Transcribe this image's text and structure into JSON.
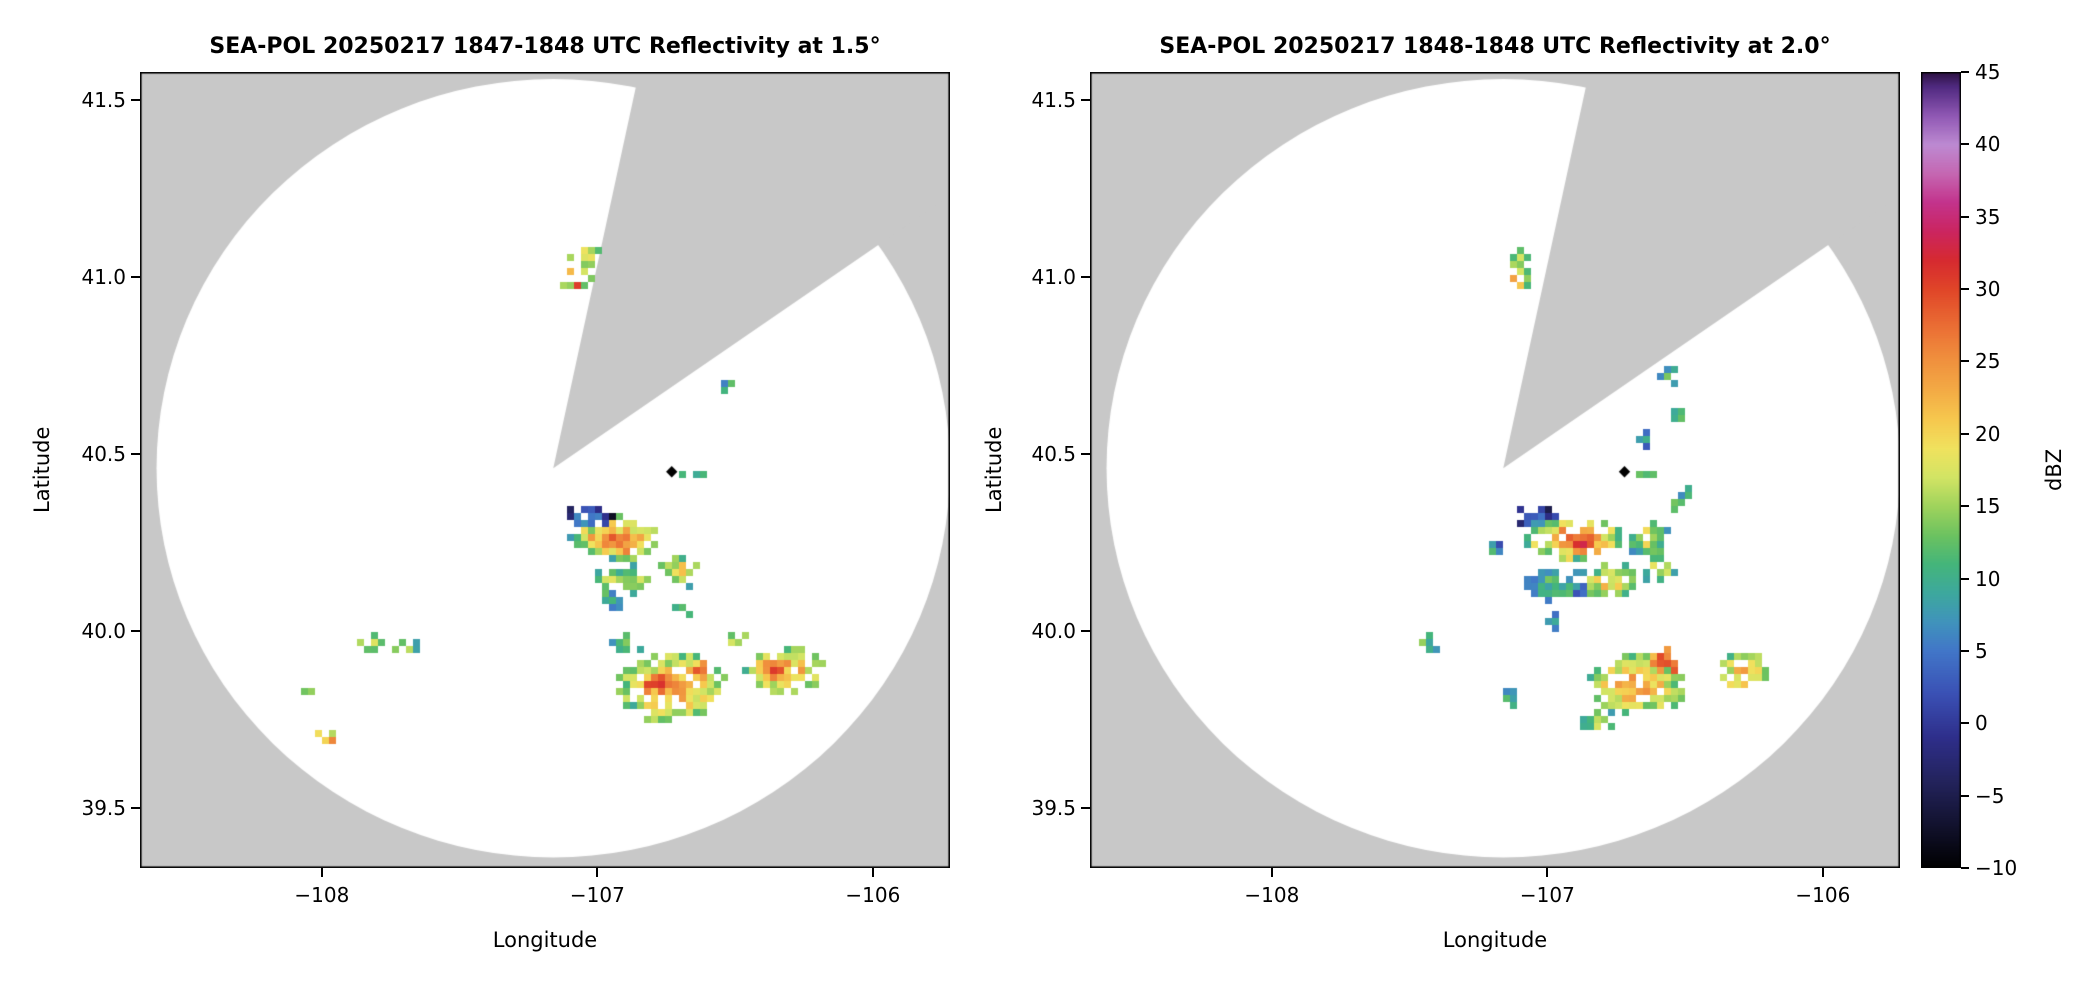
{
  "figure": {
    "background": "#ffffff",
    "outside_color": "#c8c8c8",
    "scan_color": "#ffffff"
  },
  "colorbar": {
    "label": "dBZ",
    "vmin": -10,
    "vmax": 45,
    "ticks": [
      {
        "value": 45,
        "label": "45"
      },
      {
        "value": 40,
        "label": "40"
      },
      {
        "value": 35,
        "label": "35"
      },
      {
        "value": 30,
        "label": "30"
      },
      {
        "value": 25,
        "label": "25"
      },
      {
        "value": 20,
        "label": "20"
      },
      {
        "value": 15,
        "label": "15"
      },
      {
        "value": 10,
        "label": "10"
      },
      {
        "value": 5,
        "label": "5"
      },
      {
        "value": 0,
        "label": "0"
      },
      {
        "value": -5,
        "label": "−5"
      },
      {
        "value": -10,
        "label": "−10"
      }
    ],
    "colormap": [
      [
        -10,
        "#000000"
      ],
      [
        -7,
        "#12122e"
      ],
      [
        -4,
        "#23235c"
      ],
      [
        -1,
        "#2e2e8a"
      ],
      [
        2,
        "#3a50b4"
      ],
      [
        5,
        "#4176c8"
      ],
      [
        7,
        "#4093bc"
      ],
      [
        9,
        "#3da89e"
      ],
      [
        11,
        "#44b57b"
      ],
      [
        13,
        "#6cc260"
      ],
      [
        15,
        "#9fd35c"
      ],
      [
        17,
        "#d2e464"
      ],
      [
        19,
        "#f0e25e"
      ],
      [
        21,
        "#f6c84e"
      ],
      [
        23,
        "#f3ab45"
      ],
      [
        25,
        "#f0923e"
      ],
      [
        27,
        "#ec7536"
      ],
      [
        30,
        "#e04628"
      ],
      [
        32,
        "#d62a30"
      ],
      [
        34,
        "#cb2560"
      ],
      [
        36,
        "#c3338c"
      ],
      [
        38,
        "#c567b2"
      ],
      [
        40,
        "#bd8ad2"
      ],
      [
        42,
        "#9058b4"
      ],
      [
        44,
        "#502a80"
      ],
      [
        45,
        "#2d1242"
      ]
    ]
  },
  "chart_data": [
    {
      "type": "heatmap",
      "title": "SEA-POL 20250217 1847-1848 UTC Reflectivity at 1.5°",
      "xlabel": "Longitude",
      "ylabel": "Latitude",
      "xlim": [
        -108.66,
        -105.72
      ],
      "ylim": [
        39.33,
        41.58
      ],
      "xticks": {
        "values": [
          -108,
          -107,
          -106
        ],
        "labels": [
          "−108",
          "−107",
          "−106"
        ]
      },
      "yticks": {
        "values": [
          39.5,
          40.0,
          40.5,
          41.0,
          41.5
        ],
        "labels": [
          "39.5",
          "40.0",
          "40.5",
          "41.0",
          "41.5"
        ]
      },
      "radar": {
        "lon": -107.16,
        "lat": 40.46,
        "range_lon_deg": 1.44,
        "range_lat_deg": 1.1,
        "wedge_start_az": 12,
        "wedge_end_az": 55
      },
      "marker": {
        "lon": -106.73,
        "lat": 40.45,
        "shape": "diamond",
        "color": "#000000"
      },
      "seed": 3,
      "echoes": [
        {
          "lon": -107.06,
          "lat": 41.07,
          "rx": 0.055,
          "ry": 0.03,
          "peak": 18,
          "base": 10,
          "dens": 0.9
        },
        {
          "lon": -107.09,
          "lat": 41.0,
          "rx": 0.045,
          "ry": 0.032,
          "peak": 29,
          "base": 13,
          "dens": 1.0
        },
        {
          "lon": -106.54,
          "lat": 40.7,
          "rx": 0.035,
          "ry": 0.018,
          "peak": 12,
          "base": 8,
          "dens": 0.7
        },
        {
          "lon": -106.66,
          "lat": 40.45,
          "rx": 0.05,
          "ry": 0.012,
          "peak": 13,
          "base": 8,
          "dens": 0.8
        },
        {
          "lon": -107.04,
          "lat": 40.33,
          "rx": 0.09,
          "ry": 0.035,
          "peak": 8,
          "base": -5,
          "dens": 1.0
        },
        {
          "lon": -106.94,
          "lat": 40.27,
          "rx": 0.16,
          "ry": 0.055,
          "peak": 26,
          "base": 10,
          "dens": 1.1
        },
        {
          "lon": -106.93,
          "lat": 40.26,
          "rx": 0.045,
          "ry": 0.02,
          "peak": 30,
          "base": 23,
          "dens": 1.1
        },
        {
          "lon": -106.71,
          "lat": 40.18,
          "rx": 0.07,
          "ry": 0.04,
          "peak": 20,
          "base": 10,
          "dens": 1.0
        },
        {
          "lon": -106.92,
          "lat": 40.15,
          "rx": 0.11,
          "ry": 0.04,
          "peak": 18,
          "base": 8,
          "dens": 1.0
        },
        {
          "lon": -106.97,
          "lat": 40.09,
          "rx": 0.04,
          "ry": 0.025,
          "peak": 10,
          "base": 6,
          "dens": 0.6
        },
        {
          "lon": -106.7,
          "lat": 40.07,
          "rx": 0.035,
          "ry": 0.02,
          "peak": 12,
          "base": 8,
          "dens": 0.6
        },
        {
          "lon": -106.74,
          "lat": 39.85,
          "rx": 0.2,
          "ry": 0.094,
          "peak": 23,
          "base": 12,
          "dens": 1.1
        },
        {
          "lon": -106.79,
          "lat": 39.86,
          "rx": 0.05,
          "ry": 0.035,
          "peak": 31,
          "base": 21,
          "dens": 1.1
        },
        {
          "lon": -106.64,
          "lat": 39.9,
          "rx": 0.04,
          "ry": 0.03,
          "peak": 30,
          "base": 21,
          "dens": 1.1
        },
        {
          "lon": -106.33,
          "lat": 39.9,
          "rx": 0.14,
          "ry": 0.06,
          "peak": 23,
          "base": 12,
          "dens": 1.1
        },
        {
          "lon": -106.37,
          "lat": 39.9,
          "rx": 0.04,
          "ry": 0.03,
          "peak": 31,
          "base": 22,
          "dens": 1.1
        },
        {
          "lon": -106.5,
          "lat": 39.99,
          "rx": 0.045,
          "ry": 0.02,
          "peak": 16,
          "base": 10,
          "dens": 0.7
        },
        {
          "lon": -106.9,
          "lat": 39.97,
          "rx": 0.05,
          "ry": 0.03,
          "peak": 16,
          "base": 10,
          "dens": 0.7
        },
        {
          "lon": -107.83,
          "lat": 39.98,
          "rx": 0.05,
          "ry": 0.028,
          "peak": 16,
          "base": 10,
          "dens": 0.8
        },
        {
          "lon": -107.71,
          "lat": 39.96,
          "rx": 0.05,
          "ry": 0.025,
          "peak": 14,
          "base": 9,
          "dens": 0.8
        },
        {
          "lon": -108.06,
          "lat": 39.84,
          "rx": 0.025,
          "ry": 0.02,
          "peak": 19,
          "base": 13,
          "dens": 0.9
        },
        {
          "lon": -107.99,
          "lat": 39.71,
          "rx": 0.03,
          "ry": 0.022,
          "peak": 24,
          "base": 14,
          "dens": 0.9
        }
      ]
    },
    {
      "type": "heatmap",
      "title": "SEA-POL 20250217 1848-1848 UTC Reflectivity at 2.0°",
      "xlabel": "Longitude",
      "ylabel": "Latitude",
      "xlim": [
        -108.66,
        -105.72
      ],
      "ylim": [
        39.33,
        41.58
      ],
      "xticks": {
        "values": [
          -108,
          -107,
          -106
        ],
        "labels": [
          "−108",
          "−107",
          "−106"
        ]
      },
      "yticks": {
        "values": [
          39.5,
          40.0,
          40.5,
          41.0,
          41.5
        ],
        "labels": [
          "39.5",
          "40.0",
          "40.5",
          "41.0",
          "41.5"
        ]
      },
      "radar": {
        "lon": -107.16,
        "lat": 40.46,
        "range_lon_deg": 1.44,
        "range_lat_deg": 1.1,
        "wedge_start_az": 12,
        "wedge_end_az": 55
      },
      "marker": {
        "lon": -106.72,
        "lat": 40.45,
        "shape": "diamond",
        "color": "#000000"
      },
      "seed": 11,
      "echoes": [
        {
          "lon": -107.1,
          "lat": 41.06,
          "rx": 0.05,
          "ry": 0.03,
          "peak": 16,
          "base": 9,
          "dens": 0.8
        },
        {
          "lon": -107.11,
          "lat": 41.0,
          "rx": 0.04,
          "ry": 0.03,
          "peak": 26,
          "base": 12,
          "dens": 0.9
        },
        {
          "lon": -106.58,
          "lat": 40.73,
          "rx": 0.04,
          "ry": 0.03,
          "peak": 11,
          "base": 7,
          "dens": 0.6
        },
        {
          "lon": -106.54,
          "lat": 40.62,
          "rx": 0.035,
          "ry": 0.025,
          "peak": 11,
          "base": 7,
          "dens": 0.5
        },
        {
          "lon": -106.66,
          "lat": 40.55,
          "rx": 0.03,
          "ry": 0.02,
          "peak": 10,
          "base": 6,
          "dens": 0.5
        },
        {
          "lon": -106.65,
          "lat": 40.46,
          "rx": 0.055,
          "ry": 0.015,
          "peak": 15,
          "base": 9,
          "dens": 0.8
        },
        {
          "lon": -106.5,
          "lat": 40.4,
          "rx": 0.035,
          "ry": 0.025,
          "peak": 14,
          "base": 9,
          "dens": 0.6
        },
        {
          "lon": -107.05,
          "lat": 40.33,
          "rx": 0.08,
          "ry": 0.04,
          "peak": 6,
          "base": -6,
          "dens": 1.0
        },
        {
          "lon": -106.91,
          "lat": 40.27,
          "rx": 0.18,
          "ry": 0.06,
          "peak": 26,
          "base": 10,
          "dens": 1.1
        },
        {
          "lon": -106.88,
          "lat": 40.26,
          "rx": 0.055,
          "ry": 0.022,
          "peak": 32,
          "base": 24,
          "dens": 1.2
        },
        {
          "lon": -106.64,
          "lat": 40.27,
          "rx": 0.07,
          "ry": 0.05,
          "peak": 18,
          "base": 9,
          "dens": 1.0
        },
        {
          "lon": -106.98,
          "lat": 40.14,
          "rx": 0.13,
          "ry": 0.05,
          "peak": 12,
          "base": 2,
          "dens": 1.0
        },
        {
          "lon": -106.79,
          "lat": 40.15,
          "rx": 0.1,
          "ry": 0.045,
          "peak": 20,
          "base": 10,
          "dens": 1.0
        },
        {
          "lon": -106.6,
          "lat": 40.18,
          "rx": 0.06,
          "ry": 0.035,
          "peak": 16,
          "base": 9,
          "dens": 0.8
        },
        {
          "lon": -107.21,
          "lat": 40.24,
          "rx": 0.035,
          "ry": 0.03,
          "peak": 9,
          "base": 4,
          "dens": 0.5
        },
        {
          "lon": -106.53,
          "lat": 40.36,
          "rx": 0.03,
          "ry": 0.025,
          "peak": 12,
          "base": 8,
          "dens": 0.5
        },
        {
          "lon": -107.0,
          "lat": 40.03,
          "rx": 0.04,
          "ry": 0.025,
          "peak": 10,
          "base": 5,
          "dens": 0.6
        },
        {
          "lon": -107.45,
          "lat": 39.97,
          "rx": 0.03,
          "ry": 0.022,
          "peak": 13,
          "base": 9,
          "dens": 0.8
        },
        {
          "lon": -106.69,
          "lat": 39.86,
          "rx": 0.17,
          "ry": 0.08,
          "peak": 23,
          "base": 12,
          "dens": 1.1
        },
        {
          "lon": -106.59,
          "lat": 39.92,
          "rx": 0.05,
          "ry": 0.03,
          "peak": 32,
          "base": 22,
          "dens": 1.1
        },
        {
          "lon": -106.3,
          "lat": 39.9,
          "rx": 0.09,
          "ry": 0.05,
          "peak": 22,
          "base": 12,
          "dens": 1.0
        },
        {
          "lon": -106.83,
          "lat": 39.75,
          "rx": 0.06,
          "ry": 0.035,
          "peak": 16,
          "base": 10,
          "dens": 0.8
        },
        {
          "lon": -107.15,
          "lat": 39.82,
          "rx": 0.03,
          "ry": 0.02,
          "peak": 11,
          "base": 7,
          "dens": 0.6
        }
      ]
    }
  ]
}
